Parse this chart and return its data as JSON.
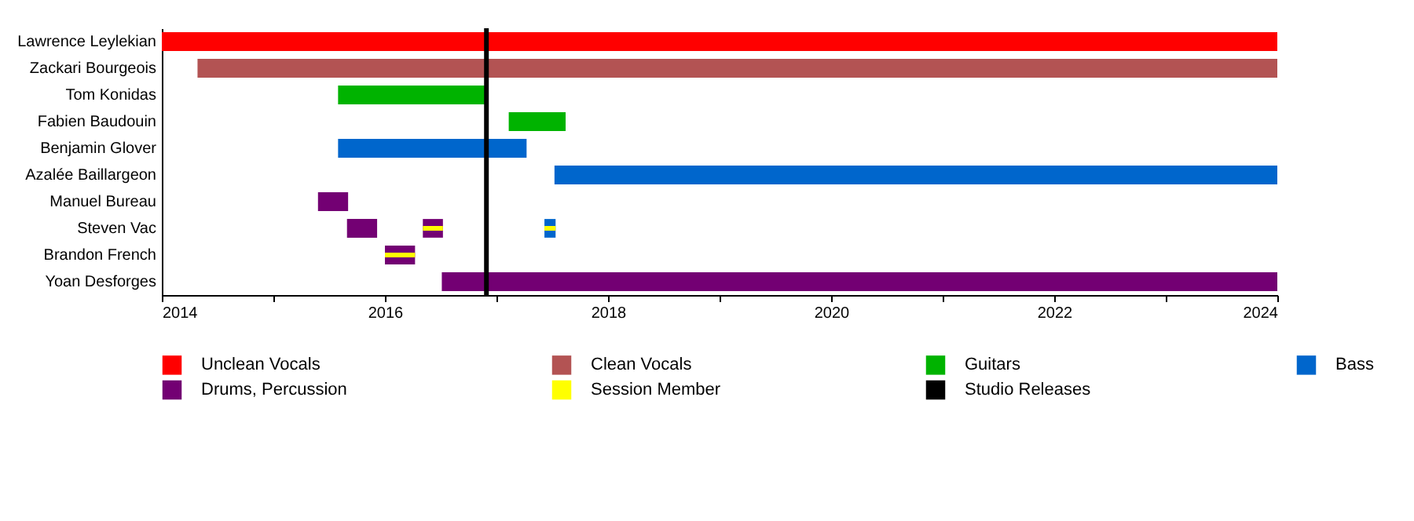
{
  "chart_data": {
    "type": "bar",
    "orientation": "horizontal",
    "categories": [
      "Lawrence Leylekian",
      "Zackari Bourgeois",
      "Tom Konidas",
      "Fabien Baudouin",
      "Benjamin Glover",
      "Azalée Baillargeon",
      "Manuel Bureau",
      "Steven Vac",
      "Brandon French",
      "Yoan Desforges"
    ],
    "series": [
      {
        "name": "Unclean Vocals",
        "color": "#ff0000",
        "base": [
          2014,
          null,
          null,
          null,
          null,
          null,
          null,
          null,
          null,
          null
        ],
        "values": [
          10,
          null,
          null,
          null,
          null,
          null,
          null,
          null,
          null,
          null
        ]
      },
      {
        "name": "Clean Vocals",
        "color": "#b35353",
        "base": [
          null,
          2014.32,
          null,
          null,
          null,
          null,
          null,
          null,
          null,
          null
        ],
        "values": [
          null,
          9.68,
          null,
          null,
          null,
          null,
          null,
          null,
          null,
          null
        ]
      },
      {
        "name": "Guitars",
        "color": "#00b300",
        "base": [
          null,
          null,
          2015.58,
          2017.11,
          null,
          null,
          null,
          null,
          null,
          null
        ],
        "values": [
          null,
          null,
          1.34,
          0.51,
          null,
          null,
          null,
          null,
          null,
          null
        ]
      },
      {
        "name": "Bass",
        "color": "#0066cc",
        "base": [
          null,
          null,
          null,
          null,
          2015.58,
          2017.52,
          null,
          2017.43,
          null,
          null
        ],
        "values": [
          null,
          null,
          null,
          null,
          1.69,
          6.48,
          null,
          0.1,
          null,
          null
        ]
      },
      {
        "name": "Drums, Percussion",
        "color": "#730073",
        "base": [
          null,
          null,
          null,
          null,
          null,
          null,
          2015.4,
          2015.66,
          2016.0,
          2016.51
        ],
        "values": [
          null,
          null,
          null,
          null,
          null,
          null,
          0.27,
          0.27,
          0.27,
          7.49
        ]
      },
      {
        "color": "#730073",
        "base": [
          null,
          null,
          null,
          null,
          null,
          null,
          null,
          2016.34,
          null,
          null
        ],
        "values": [
          null,
          null,
          null,
          null,
          null,
          null,
          null,
          0.18,
          null,
          null
        ]
      },
      {
        "name": "Session Member",
        "color": "#ffff00",
        "base": [
          null,
          null,
          null,
          null,
          null,
          null,
          null,
          2017.43,
          2016.0,
          null
        ],
        "values": [
          null,
          null,
          null,
          null,
          null,
          null,
          null,
          0.1,
          0.27,
          null
        ]
      },
      {
        "color": "#ffff00",
        "base": [
          null,
          null,
          null,
          null,
          null,
          null,
          null,
          2016.34,
          null,
          null
        ],
        "values": [
          null,
          null,
          null,
          null,
          null,
          null,
          null,
          0.18,
          null,
          null
        ]
      }
    ],
    "ref_lines": [
      {
        "axis": "x",
        "value": 2016.91,
        "label": "Studio Releases",
        "color": "#000000"
      }
    ],
    "xlim": [
      2014,
      2024
    ],
    "xticks": [
      2014,
      {
        "value": 2015,
        "label": null
      },
      2016,
      {
        "value": 2017,
        "label": null
      },
      2018,
      {
        "value": 2019,
        "label": null
      },
      2020,
      {
        "value": 2021,
        "label": null
      },
      2022,
      {
        "value": 2023,
        "label": null
      },
      2024
    ],
    "legend": "bottom"
  }
}
